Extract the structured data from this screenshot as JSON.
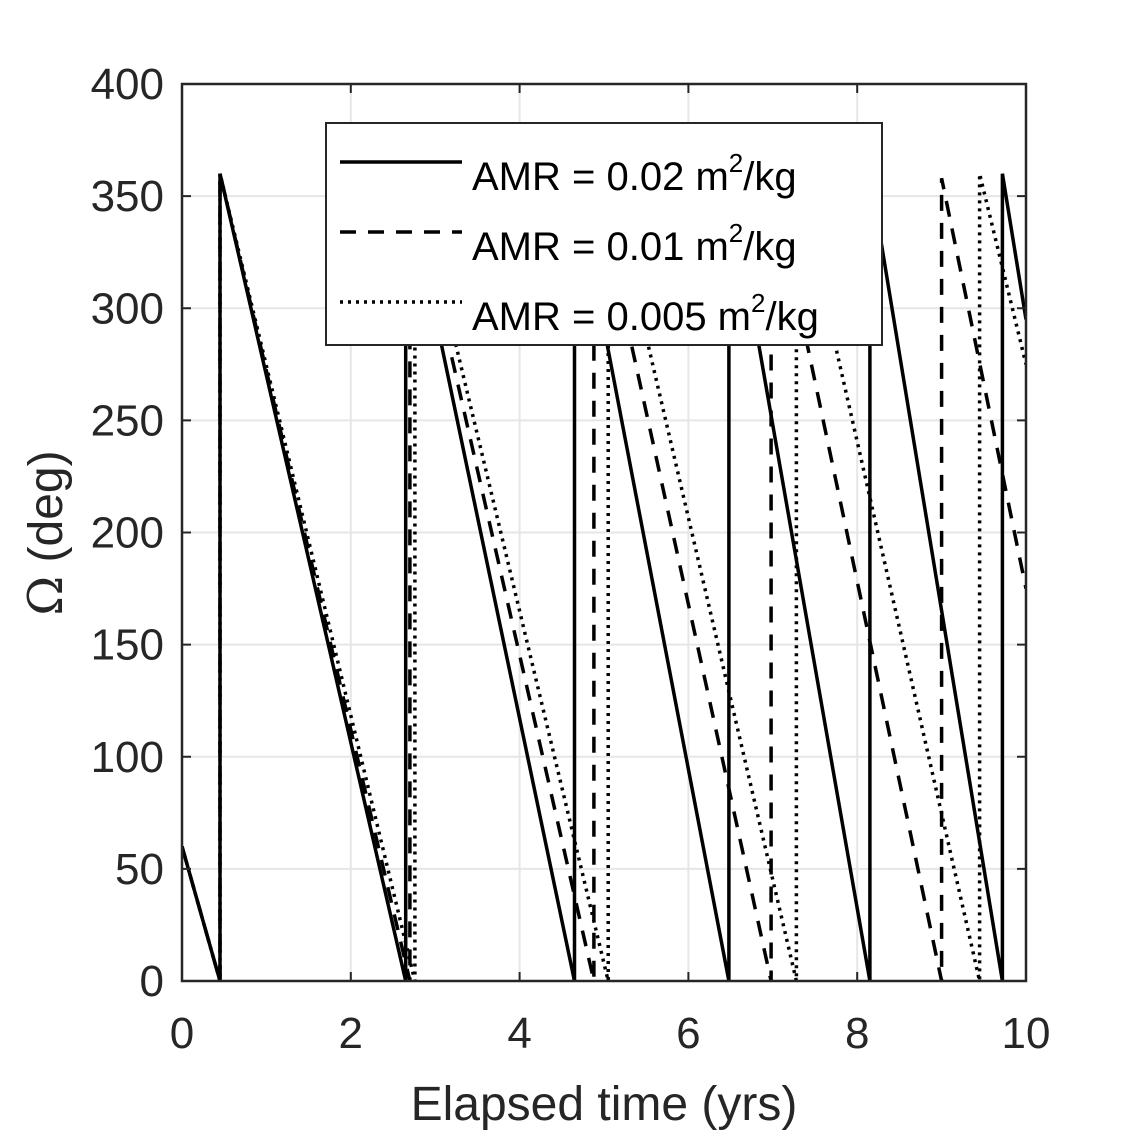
{
  "chart_data": {
    "type": "line",
    "xlabel": "Elapsed time (yrs)",
    "ylabel": {
      "symbol": "Ω",
      "unit": "(deg)"
    },
    "xlim": [
      0,
      10
    ],
    "ylim": [
      0,
      400
    ],
    "x_ticks": [
      0,
      2,
      4,
      6,
      8,
      10
    ],
    "y_ticks": [
      0,
      50,
      100,
      150,
      200,
      250,
      300,
      350,
      400
    ],
    "grid": true,
    "legend_position": "top-center",
    "series": [
      {
        "name": "AMR = 0.02 m2/kg",
        "legend": {
          "prefix": "AMR = 0.02 m",
          "sup": "2",
          "suffix": "/kg"
        },
        "style": "solid",
        "color": "#000000",
        "points": [
          [
            0,
            60
          ],
          [
            0.45,
            0
          ],
          [
            0.45,
            360
          ],
          [
            2.65,
            0
          ],
          [
            2.65,
            360
          ],
          [
            4.65,
            0
          ],
          [
            4.65,
            360
          ],
          [
            6.48,
            0
          ],
          [
            6.48,
            360
          ],
          [
            8.15,
            0
          ],
          [
            8.15,
            360
          ],
          [
            9.72,
            0
          ],
          [
            9.72,
            360
          ],
          [
            10.0,
            295
          ]
        ]
      },
      {
        "name": "AMR = 0.01 m2/kg",
        "legend": {
          "prefix": "AMR = 0.01 m",
          "sup": "2",
          "suffix": "/kg"
        },
        "style": "dashed",
        "color": "#000000",
        "points": [
          [
            0,
            60
          ],
          [
            0.45,
            0
          ],
          [
            0.45,
            360
          ],
          [
            2.7,
            0
          ],
          [
            2.7,
            360
          ],
          [
            4.88,
            0
          ],
          [
            4.88,
            360
          ],
          [
            6.98,
            0
          ],
          [
            6.98,
            360
          ],
          [
            9.0,
            0
          ],
          [
            9.0,
            358
          ],
          [
            10.0,
            175
          ]
        ]
      },
      {
        "name": "AMR = 0.005 m2/kg",
        "legend": {
          "prefix": "AMR = 0.005 m",
          "sup": "2",
          "suffix": "/kg"
        },
        "style": "dotted",
        "color": "#000000",
        "points": [
          [
            0,
            60
          ],
          [
            0.45,
            0
          ],
          [
            0.45,
            360
          ],
          [
            2.76,
            0
          ],
          [
            2.76,
            360
          ],
          [
            5.05,
            0
          ],
          [
            5.05,
            360
          ],
          [
            7.28,
            0
          ],
          [
            7.28,
            360
          ],
          [
            9.45,
            0
          ],
          [
            9.45,
            360
          ],
          [
            10.0,
            275
          ]
        ]
      }
    ]
  }
}
